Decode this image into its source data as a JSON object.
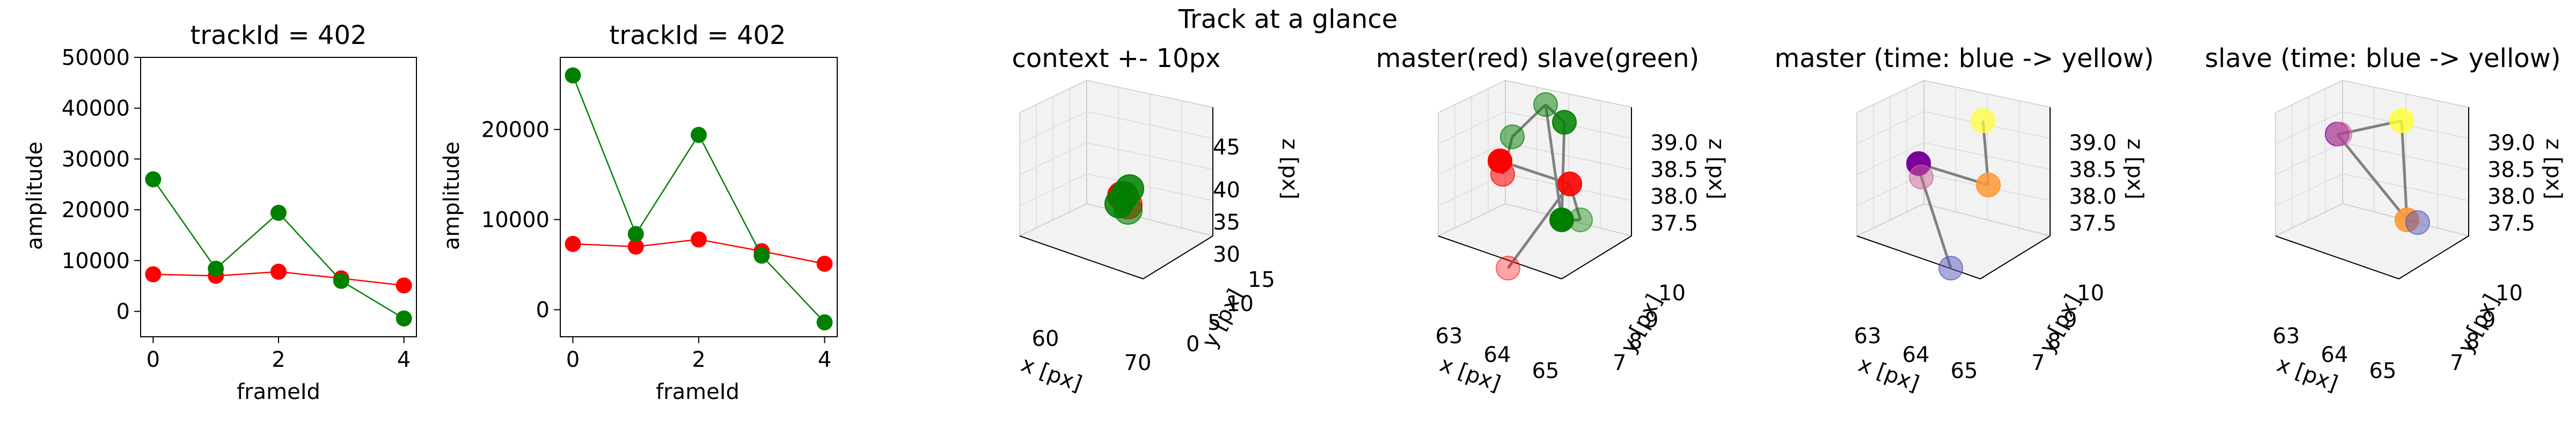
{
  "figure_title": "Track at a glance",
  "colors": {
    "master": "#ff0000",
    "slave": "#008000",
    "link": "#808080",
    "pane": "#f2f2f2",
    "grid": "#d9d9d9"
  },
  "chart_data": [
    {
      "type": "line",
      "title": "trackId = 402",
      "xlabel": "frameId",
      "ylabel": "amplitude",
      "x": [
        0,
        1,
        2,
        3,
        4
      ],
      "xticks": [
        "0",
        "2",
        "4"
      ],
      "yticks": [
        "0",
        "10000",
        "20000",
        "30000",
        "40000",
        "50000"
      ],
      "ylim": [
        -5000,
        50000
      ],
      "series": [
        {
          "color": "#ff0000",
          "values": [
            7300,
            7000,
            7800,
            6500,
            5100
          ]
        },
        {
          "color": "#008000",
          "values": [
            26000,
            8400,
            19400,
            6000,
            -1400
          ]
        }
      ]
    },
    {
      "type": "line",
      "title": "trackId = 402",
      "xlabel": "frameId",
      "ylabel": "amplitude",
      "x": [
        0,
        1,
        2,
        3,
        4
      ],
      "xticks": [
        "0",
        "2",
        "4"
      ],
      "yticks": [
        "0",
        "10000",
        "20000"
      ],
      "ylim": [
        -3000,
        28000
      ],
      "series": [
        {
          "color": "#ff0000",
          "values": [
            7300,
            7000,
            7800,
            6500,
            5100
          ]
        },
        {
          "color": "#008000",
          "values": [
            26000,
            8400,
            19400,
            6000,
            -1400
          ]
        }
      ]
    },
    {
      "type": "scatter",
      "title": "context +- 10px",
      "xlabel": "x [px]",
      "ylabel": "y [px]",
      "zlabel": "z [px]",
      "xticks": [
        "60",
        "70"
      ],
      "yticks": [
        "0",
        "5",
        "10",
        "15"
      ],
      "zticks": [
        "30",
        "35",
        "40",
        "45"
      ],
      "points": [
        {
          "color": "#ff0000",
          "alpha": 1.0
        },
        {
          "color": "#ff0000",
          "alpha": 0.7
        },
        {
          "color": "#008000",
          "alpha": 0.85
        },
        {
          "color": "#008000",
          "alpha": 0.85
        },
        {
          "color": "#008000",
          "alpha": 0.85
        },
        {
          "color": "#008000",
          "alpha": 0.6
        }
      ]
    },
    {
      "type": "scatter",
      "title": "master(red) slave(green)",
      "xlabel": "x [px]",
      "ylabel": "y [px]",
      "zlabel": "z [px]",
      "xticks": [
        "63",
        "64",
        "65"
      ],
      "yticks": [
        "7",
        "8",
        "9",
        "10"
      ],
      "zticks": [
        "37.5",
        "38.0",
        "38.5",
        "39.0"
      ],
      "points": [
        {
          "color": "#ff0000",
          "alpha": 1.0
        },
        {
          "color": "#ff0000",
          "alpha": 0.55
        },
        {
          "color": "#ff0000",
          "alpha": 0.9
        },
        {
          "color": "#ff0000",
          "alpha": 0.35
        },
        {
          "color": "#008000",
          "alpha": 0.5
        },
        {
          "color": "#008000",
          "alpha": 0.5
        },
        {
          "color": "#008000",
          "alpha": 0.85
        },
        {
          "color": "#008000",
          "alpha": 1.0
        },
        {
          "color": "#008000",
          "alpha": 0.4
        }
      ]
    },
    {
      "type": "scatter",
      "title": "master (time: blue -> yellow)",
      "xlabel": "x [px]",
      "ylabel": "y [px]",
      "zlabel": "z [px]",
      "xticks": [
        "63",
        "64",
        "65"
      ],
      "yticks": [
        "7",
        "8",
        "9",
        "10"
      ],
      "zticks": [
        "37.5",
        "38.0",
        "38.5",
        "39.0"
      ],
      "points": [
        {
          "color": "#7b0099",
          "alpha": 1.0
        },
        {
          "color": "#cc6699",
          "alpha": 0.5
        },
        {
          "color": "#ff9933",
          "alpha": 0.85
        },
        {
          "color": "#ffff33",
          "alpha": 0.7
        },
        {
          "color": "#5555bb",
          "alpha": 0.5
        }
      ]
    },
    {
      "type": "scatter",
      "title": "slave (time: blue -> yellow)",
      "xlabel": "x [px]",
      "ylabel": "y [px]",
      "zlabel": "z [px]",
      "xticks": [
        "63",
        "64",
        "65"
      ],
      "yticks": [
        "7",
        "8",
        "9",
        "10"
      ],
      "zticks": [
        "37.5",
        "38.0",
        "38.5",
        "39.0"
      ],
      "points": [
        {
          "color": "#7b0099",
          "alpha": 0.55
        },
        {
          "color": "#cc6699",
          "alpha": 0.5
        },
        {
          "color": "#ffff33",
          "alpha": 0.8
        },
        {
          "color": "#ff9933",
          "alpha": 0.9
        },
        {
          "color": "#5555bb",
          "alpha": 0.5
        }
      ]
    }
  ]
}
